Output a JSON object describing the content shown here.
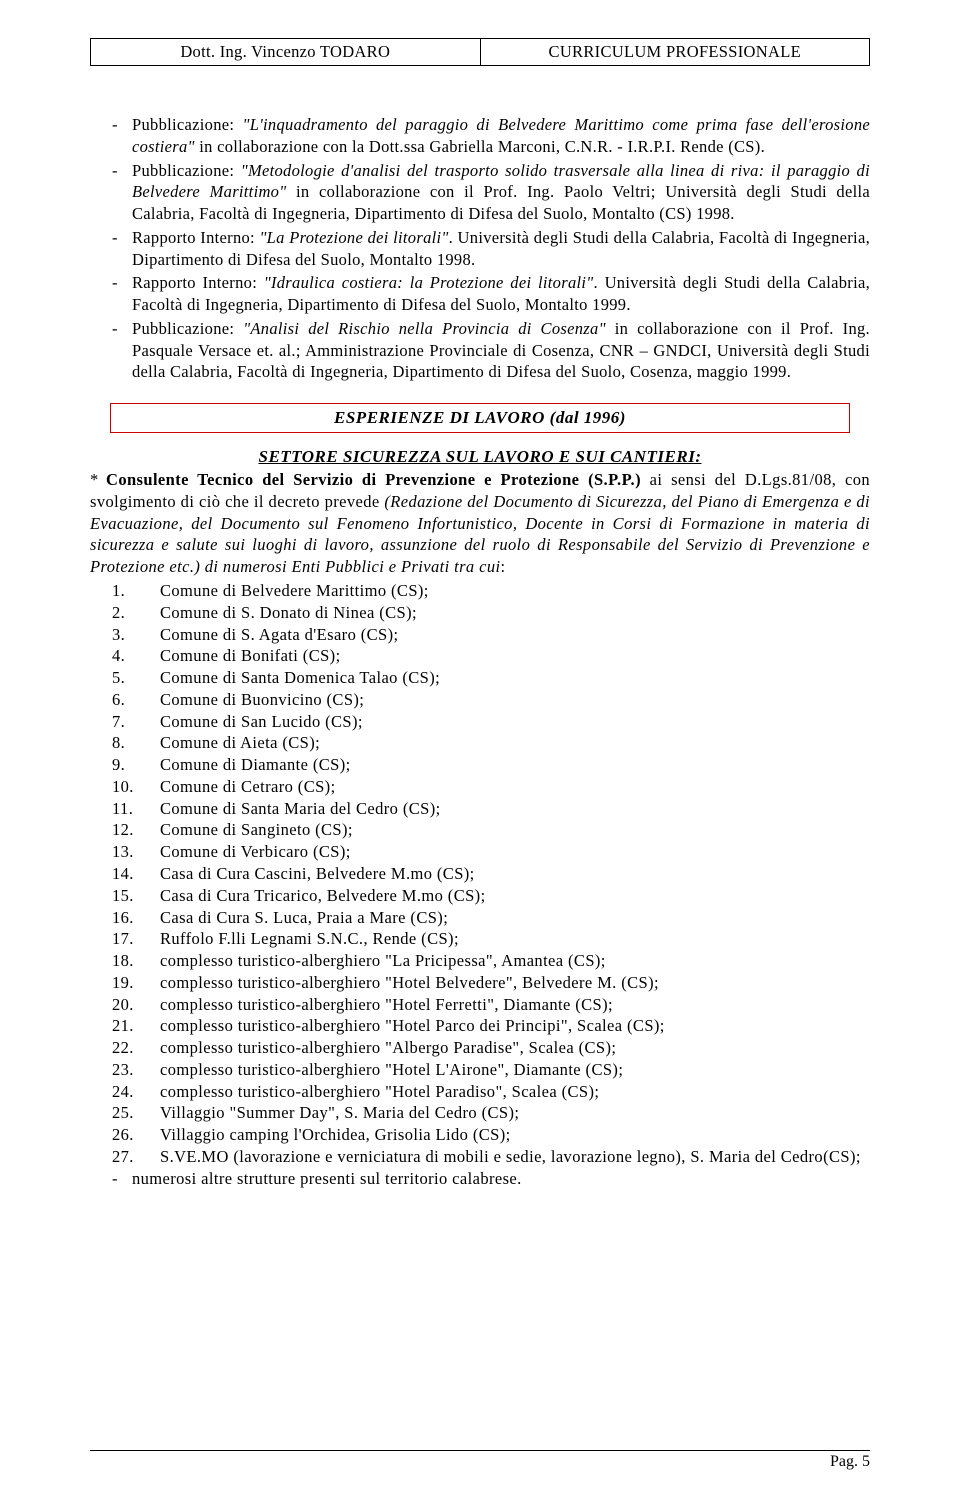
{
  "header": {
    "left": "Dott. Ing. Vincenzo TODARO",
    "right": "CURRICULUM PROFESSIONALE"
  },
  "publications": [
    "Pubblicazione: <i>\"L'inquadramento del paraggio di Belvedere Marittimo come prima fase dell'erosione costiera\"</i> in collaborazione con la Dott.ssa Gabriella Marconi, C.N.R. - I.R.P.I. Rende (CS).",
    "Pubblicazione: <i>\"Metodologie d'analisi del trasporto solido trasversale alla linea di riva: il paraggio di Belvedere Marittimo\"</i> in collaborazione con il Prof. Ing. Paolo Veltri; Università degli Studi della Calabria, Facoltà di Ingegneria, Dipartimento di Difesa del Suolo, Montalto (CS) 1998.",
    "Rapporto Interno: <i>\"La Protezione dei litorali\"</i>. Università degli Studi della Calabria, Facoltà di Ingegneria, Dipartimento di Difesa del Suolo, Montalto 1998.",
    "Rapporto Interno: <i>\"Idraulica costiera: la Protezione dei litorali\"</i>. Università degli Studi della Calabria, Facoltà di Ingegneria, Dipartimento di Difesa del Suolo, Montalto 1999.",
    "Pubblicazione: <i>\"Analisi del Rischio nella Provincia di Cosenza\"</i> in collaborazione con il Prof. Ing. Pasquale Versace et. al.; Amministrazione Provinciale di Cosenza, CNR – GNDCI, Università degli Studi della Calabria, Facoltà di Ingegneria, Dipartimento di Difesa del Suolo, Cosenza, maggio 1999."
  ],
  "section_title": "ESPERIENZE DI LAVORO (dal 1996)",
  "subsection_title": "SETTORE SICUREZZA SUL LAVORO E SUI CANTIERI:",
  "consulente_intro": "<b>Consulente Tecnico del Servizio di Prevenzione e Protezione (S.P.P.)</b> ai sensi del D.Lgs.81/08, con svolgimento di ciò che il decreto prevede <i>(Redazione del Documento di Sicurezza, del Piano di Emergenza e di Evacuazione, del Documento sul Fenomeno Infortunistico, Docente in Corsi di Formazione in materia di sicurezza e salute sui luoghi di lavoro, assunzione del ruolo di Responsabile del Servizio di Prevenzione e Protezione etc.) di numerosi Enti Pubblici e Privati tra cui</i>:",
  "enti": [
    "Comune di Belvedere Marittimo (CS);",
    "Comune di S. Donato di Ninea (CS);",
    "Comune di S. Agata d'Esaro (CS);",
    "Comune di Bonifati (CS);",
    "Comune di Santa Domenica Talao (CS);",
    "Comune di Buonvicino (CS);",
    "Comune di San Lucido (CS);",
    "Comune di Aieta (CS);",
    "Comune di Diamante (CS);",
    "Comune di Cetraro (CS);",
    "Comune di Santa Maria del Cedro (CS);",
    "Comune di Sangineto (CS);",
    "Comune di Verbicaro (CS);",
    "Casa di Cura Cascini, Belvedere M.mo (CS);",
    "Casa di Cura Tricarico, Belvedere M.mo (CS);",
    "Casa di Cura S. Luca, Praia a Mare (CS);",
    "Ruffolo F.lli Legnami S.N.C., Rende (CS);",
    "complesso turistico-alberghiero \"La Pricipessa\", Amantea (CS);",
    "complesso turistico-alberghiero \"Hotel Belvedere\", Belvedere M. (CS);",
    "complesso turistico-alberghiero \"Hotel Ferretti\", Diamante (CS);",
    "complesso turistico-alberghiero \"Hotel Parco dei Principi\", Scalea (CS);",
    "complesso turistico-alberghiero \"Albergo Paradise\", Scalea (CS);",
    "complesso turistico-alberghiero \"Hotel L'Airone\", Diamante (CS);",
    "complesso turistico-alberghiero \"Hotel Paradiso\", Scalea (CS);",
    "Villaggio \"Summer Day\", S. Maria del Cedro (CS);",
    "Villaggio camping l'Orchidea, Grisolia Lido (CS);",
    "S.VE.MO (lavorazione e verniciatura di mobili e sedie, lavorazione legno), S. Maria del Cedro(CS);"
  ],
  "final_note": "numerosi altre strutture presenti sul territorio calabrese.",
  "footer": "Pag. 5"
}
